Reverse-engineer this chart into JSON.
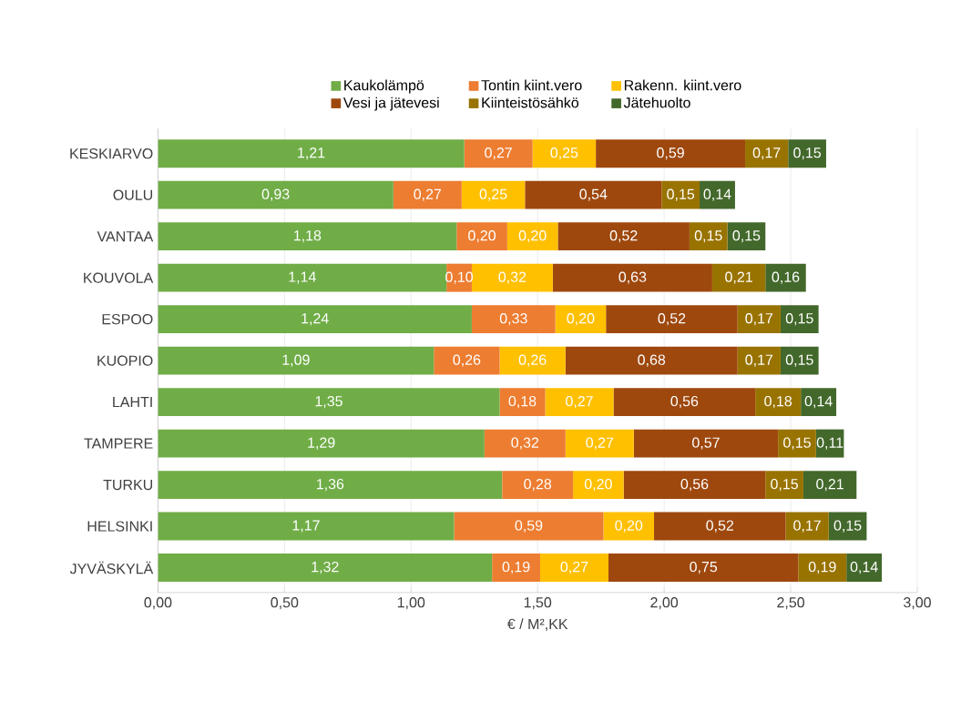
{
  "chart_data": {
    "type": "bar",
    "orientation": "horizontal",
    "stacked": true,
    "xlabel": "€ / M²,KK",
    "categories": [
      "KESKIARVO",
      "OULU",
      "VANTAA",
      "KOUVOLA",
      "ESPOO",
      "KUOPIO",
      "LAHTI",
      "TAMPERE",
      "TURKU",
      "HELSINKI",
      "JYVÄSKYLÄ"
    ],
    "series": [
      {
        "name": "Kaukolämpö",
        "color": "#70ad47",
        "values": [
          1.21,
          0.93,
          1.18,
          1.14,
          1.24,
          1.09,
          1.35,
          1.29,
          1.36,
          1.17,
          1.32
        ],
        "value_labels": [
          "1,21",
          "0,93",
          "1,18",
          "1,14",
          "1,24",
          "1,09",
          "1,35",
          "1,29",
          "1,36",
          "1,17",
          "1,32"
        ]
      },
      {
        "name": "Tontin kiint.vero",
        "color": "#ed7d31",
        "values": [
          0.27,
          0.27,
          0.2,
          0.1,
          0.33,
          0.26,
          0.18,
          0.32,
          0.28,
          0.59,
          0.19
        ],
        "value_labels": [
          "0,27",
          "0,27",
          "0,20",
          "0,10",
          "0,33",
          "0,26",
          "0,18",
          "0,32",
          "0,28",
          "0,59",
          "0,19"
        ]
      },
      {
        "name": "Rakenn. kiint.vero",
        "color": "#ffc000",
        "values": [
          0.25,
          0.25,
          0.2,
          0.32,
          0.2,
          0.26,
          0.27,
          0.27,
          0.2,
          0.2,
          0.27
        ],
        "value_labels": [
          "0,25",
          "0,25",
          "0,20",
          "0,32",
          "0,20",
          "0,26",
          "0,27",
          "0,27",
          "0,20",
          "0,20",
          "0,27"
        ]
      },
      {
        "name": "Vesi ja jätevesi",
        "color": "#9e480e",
        "values": [
          0.59,
          0.54,
          0.52,
          0.63,
          0.52,
          0.68,
          0.56,
          0.57,
          0.56,
          0.52,
          0.75
        ],
        "value_labels": [
          "0,59",
          "0,54",
          "0,52",
          "0,63",
          "0,52",
          "0,68",
          "0,56",
          "0,57",
          "0,56",
          "0,52",
          "0,75"
        ]
      },
      {
        "name": "Kiinteistösähkö",
        "color": "#997300",
        "values": [
          0.17,
          0.15,
          0.15,
          0.21,
          0.17,
          0.17,
          0.18,
          0.15,
          0.15,
          0.17,
          0.19
        ],
        "value_labels": [
          "0,17",
          "0,15",
          "0,15",
          "0,21",
          "0,17",
          "0,17",
          "0,18",
          "0,15",
          "0,15",
          "0,17",
          "0,19"
        ]
      },
      {
        "name": "Jätehuolto",
        "color": "#43682b",
        "values": [
          0.15,
          0.14,
          0.15,
          0.16,
          0.15,
          0.15,
          0.14,
          0.11,
          0.21,
          0.15,
          0.14
        ],
        "value_labels": [
          "0,15",
          "0,14",
          "0,15",
          "0,16",
          "0,15",
          "0,15",
          "0,14",
          "0,11",
          "0,21",
          "0,15",
          "0,14"
        ]
      }
    ],
    "xlim": [
      0,
      3
    ],
    "xticks": [
      {
        "value": 0,
        "label": "0,00"
      },
      {
        "value": 0.5,
        "label": "0,50"
      },
      {
        "value": 1,
        "label": "1,00"
      },
      {
        "value": 1.5,
        "label": "1,50"
      },
      {
        "value": 2,
        "label": "2,00"
      },
      {
        "value": 2.5,
        "label": "2,50"
      },
      {
        "value": 3,
        "label": "3,00"
      }
    ],
    "grid": "x",
    "legend": "top"
  }
}
